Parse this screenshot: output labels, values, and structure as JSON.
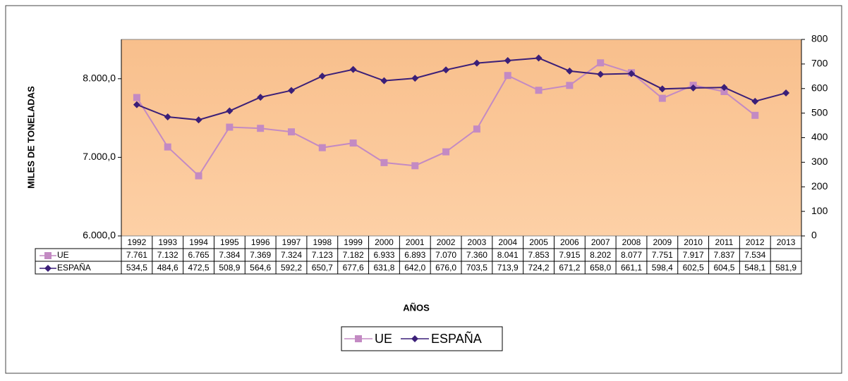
{
  "chart_data": {
    "type": "line",
    "x_label": "AÑOS",
    "y_label": "MILES DE TONELADAS",
    "categories": [
      "1992",
      "1993",
      "1994",
      "1995",
      "1996",
      "1997",
      "1998",
      "1999",
      "2000",
      "2001",
      "2002",
      "2003",
      "2004",
      "2005",
      "2006",
      "2007",
      "2008",
      "2009",
      "2010",
      "2011",
      "2012",
      "2013"
    ],
    "series": [
      {
        "name": "UE",
        "color": "#c38ac3",
        "marker": "square",
        "values": [
          7761,
          7132,
          6765,
          7384,
          7369,
          7324,
          7123,
          7182,
          6933,
          6893,
          7070,
          7360,
          8041,
          7853,
          7915,
          8202,
          8077,
          7751,
          7917,
          7837,
          7534,
          null
        ],
        "value_labels": [
          "7.761",
          "7.132",
          "6.765",
          "7.384",
          "7.369",
          "7.324",
          "7.123",
          "7.182",
          "6.933",
          "6.893",
          "7.070",
          "7.360",
          "8.041",
          "7.853",
          "7.915",
          "8.202",
          "8.077",
          "7.751",
          "7.917",
          "7.837",
          "7.534",
          null
        ]
      },
      {
        "name": "ESPAÑA",
        "color": "#3b1f78",
        "marker": "diamond",
        "axis": "y2",
        "values": [
          534.5,
          484.6,
          472.5,
          508.9,
          564.6,
          592.2,
          650.7,
          677.6,
          631.8,
          642.0,
          676.0,
          703.5,
          713.9,
          724.2,
          671.2,
          658.0,
          661.1,
          598.4,
          602.5,
          604.5,
          548.1,
          581.9
        ],
        "value_labels": [
          "534,5",
          "484,6",
          "472,5",
          "508,9",
          "564,6",
          "592,2",
          "650,7",
          "677,6",
          "631,8",
          "642,0",
          "676,0",
          "703,5",
          "713,9",
          "724,2",
          "671,2",
          "658,0",
          "661,1",
          "598,4",
          "602,5",
          "604,5",
          "548,1",
          "581,9"
        ]
      }
    ],
    "ylim": [
      6000,
      8500
    ],
    "yticks": [
      {
        "value": 6000,
        "label": "6.000,0"
      },
      {
        "value": 7000,
        "label": "7.000,0"
      },
      {
        "value": 8000,
        "label": "8.000,0"
      }
    ],
    "y2lim": [
      0,
      800
    ],
    "y2ticks": [
      0,
      100,
      200,
      300,
      400,
      500,
      600,
      700,
      800
    ],
    "grid": false,
    "legend": "bottom",
    "data_table": true
  }
}
